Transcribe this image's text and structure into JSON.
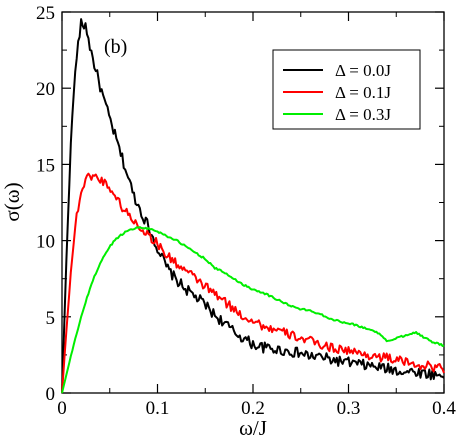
{
  "chart_data": {
    "type": "line",
    "panel_label": "(b)",
    "xlabel": "ω/J",
    "ylabel": "σ(ω)",
    "xlim": [
      0,
      0.4
    ],
    "ylim": [
      0,
      25
    ],
    "xticks": [
      0,
      0.1,
      0.2,
      0.3,
      0.4
    ],
    "xtick_labels": [
      "0",
      "0.1",
      "0.2",
      "0.3",
      "0.4"
    ],
    "yticks": [
      0,
      5,
      10,
      15,
      20,
      25
    ],
    "ytick_labels": [
      "0",
      "5",
      "10",
      "15",
      "20",
      "25"
    ],
    "grid": false,
    "legend_position": "top-right",
    "series": [
      {
        "name": "Δ = 0.0J",
        "color": "#000000",
        "noise": 0.35,
        "x": [
          0,
          0.005,
          0.01,
          0.015,
          0.02,
          0.025,
          0.03,
          0.035,
          0.04,
          0.045,
          0.05,
          0.055,
          0.06,
          0.065,
          0.07,
          0.075,
          0.08,
          0.085,
          0.09,
          0.1,
          0.11,
          0.12,
          0.13,
          0.14,
          0.15,
          0.16,
          0.17,
          0.18,
          0.19,
          0.2,
          0.21,
          0.22,
          0.23,
          0.24,
          0.25,
          0.26,
          0.27,
          0.28,
          0.29,
          0.3,
          0.31,
          0.32,
          0.33,
          0.34,
          0.35,
          0.36,
          0.37,
          0.38,
          0.39,
          0.4
        ],
        "y": [
          0,
          9.5,
          17.5,
          22,
          24.2,
          24.1,
          22.5,
          21.3,
          20.1,
          19,
          18,
          17,
          16,
          15,
          14,
          13,
          12.3,
          11.6,
          11,
          9.5,
          8.2,
          7.4,
          6.8,
          6.3,
          5.8,
          5.1,
          4.6,
          4.0,
          3.6,
          3.2,
          3.0,
          2.9,
          2.8,
          2.7,
          2.6,
          2.4,
          2.4,
          2.2,
          2.1,
          2.0,
          1.9,
          1.8,
          1.7,
          1.6,
          1.5,
          1.4,
          1.4,
          1.3,
          1.2,
          1.1
        ]
      },
      {
        "name": "Δ = 0.1J",
        "color": "#ff0000",
        "noise": 0.3,
        "x": [
          0,
          0.005,
          0.01,
          0.015,
          0.02,
          0.025,
          0.03,
          0.035,
          0.04,
          0.045,
          0.05,
          0.055,
          0.06,
          0.065,
          0.07,
          0.075,
          0.08,
          0.085,
          0.09,
          0.1,
          0.11,
          0.12,
          0.13,
          0.14,
          0.15,
          0.16,
          0.17,
          0.18,
          0.19,
          0.2,
          0.21,
          0.22,
          0.23,
          0.24,
          0.25,
          0.26,
          0.27,
          0.28,
          0.29,
          0.3,
          0.31,
          0.32,
          0.33,
          0.34,
          0.35,
          0.36,
          0.37,
          0.38,
          0.39,
          0.4
        ],
        "y": [
          0,
          4.5,
          8.5,
          11.5,
          13.2,
          14.0,
          14.3,
          14.2,
          14.0,
          13.8,
          13.5,
          13.0,
          12.5,
          12.0,
          11.7,
          11.3,
          11.0,
          10.7,
          10.4,
          9.8,
          9.0,
          8.5,
          8.0,
          7.5,
          7.0,
          6.5,
          6.0,
          5.5,
          5.0,
          4.8,
          4.4,
          4.2,
          4.0,
          3.8,
          3.6,
          3.4,
          3.2,
          3.0,
          2.9,
          2.8,
          2.6,
          2.5,
          2.4,
          2.3,
          2.2,
          2.0,
          1.9,
          1.8,
          1.7,
          1.6
        ]
      },
      {
        "name": "Δ = 0.3J",
        "color": "#00ee00",
        "noise": 0.06,
        "x": [
          0,
          0.005,
          0.01,
          0.015,
          0.02,
          0.025,
          0.03,
          0.035,
          0.04,
          0.045,
          0.05,
          0.055,
          0.06,
          0.065,
          0.07,
          0.075,
          0.08,
          0.085,
          0.09,
          0.095,
          0.1,
          0.11,
          0.12,
          0.13,
          0.14,
          0.15,
          0.16,
          0.17,
          0.18,
          0.19,
          0.2,
          0.21,
          0.22,
          0.23,
          0.24,
          0.25,
          0.26,
          0.27,
          0.28,
          0.29,
          0.3,
          0.31,
          0.32,
          0.33,
          0.34,
          0.35,
          0.36,
          0.37,
          0.38,
          0.39,
          0.4
        ],
        "y": [
          0,
          1.3,
          2.6,
          3.8,
          5.0,
          6.0,
          7.0,
          7.8,
          8.5,
          9.1,
          9.6,
          10.0,
          10.3,
          10.5,
          10.7,
          10.8,
          10.85,
          10.85,
          10.8,
          10.7,
          10.6,
          10.3,
          10.0,
          9.6,
          9.2,
          8.8,
          8.2,
          7.9,
          7.5,
          7.1,
          6.8,
          6.6,
          6.3,
          6.0,
          5.7,
          5.5,
          5.4,
          5.2,
          4.9,
          4.7,
          4.6,
          4.4,
          4.2,
          4.0,
          3.4,
          3.6,
          3.8,
          4.0,
          3.6,
          3.3,
          3.1
        ]
      }
    ]
  }
}
